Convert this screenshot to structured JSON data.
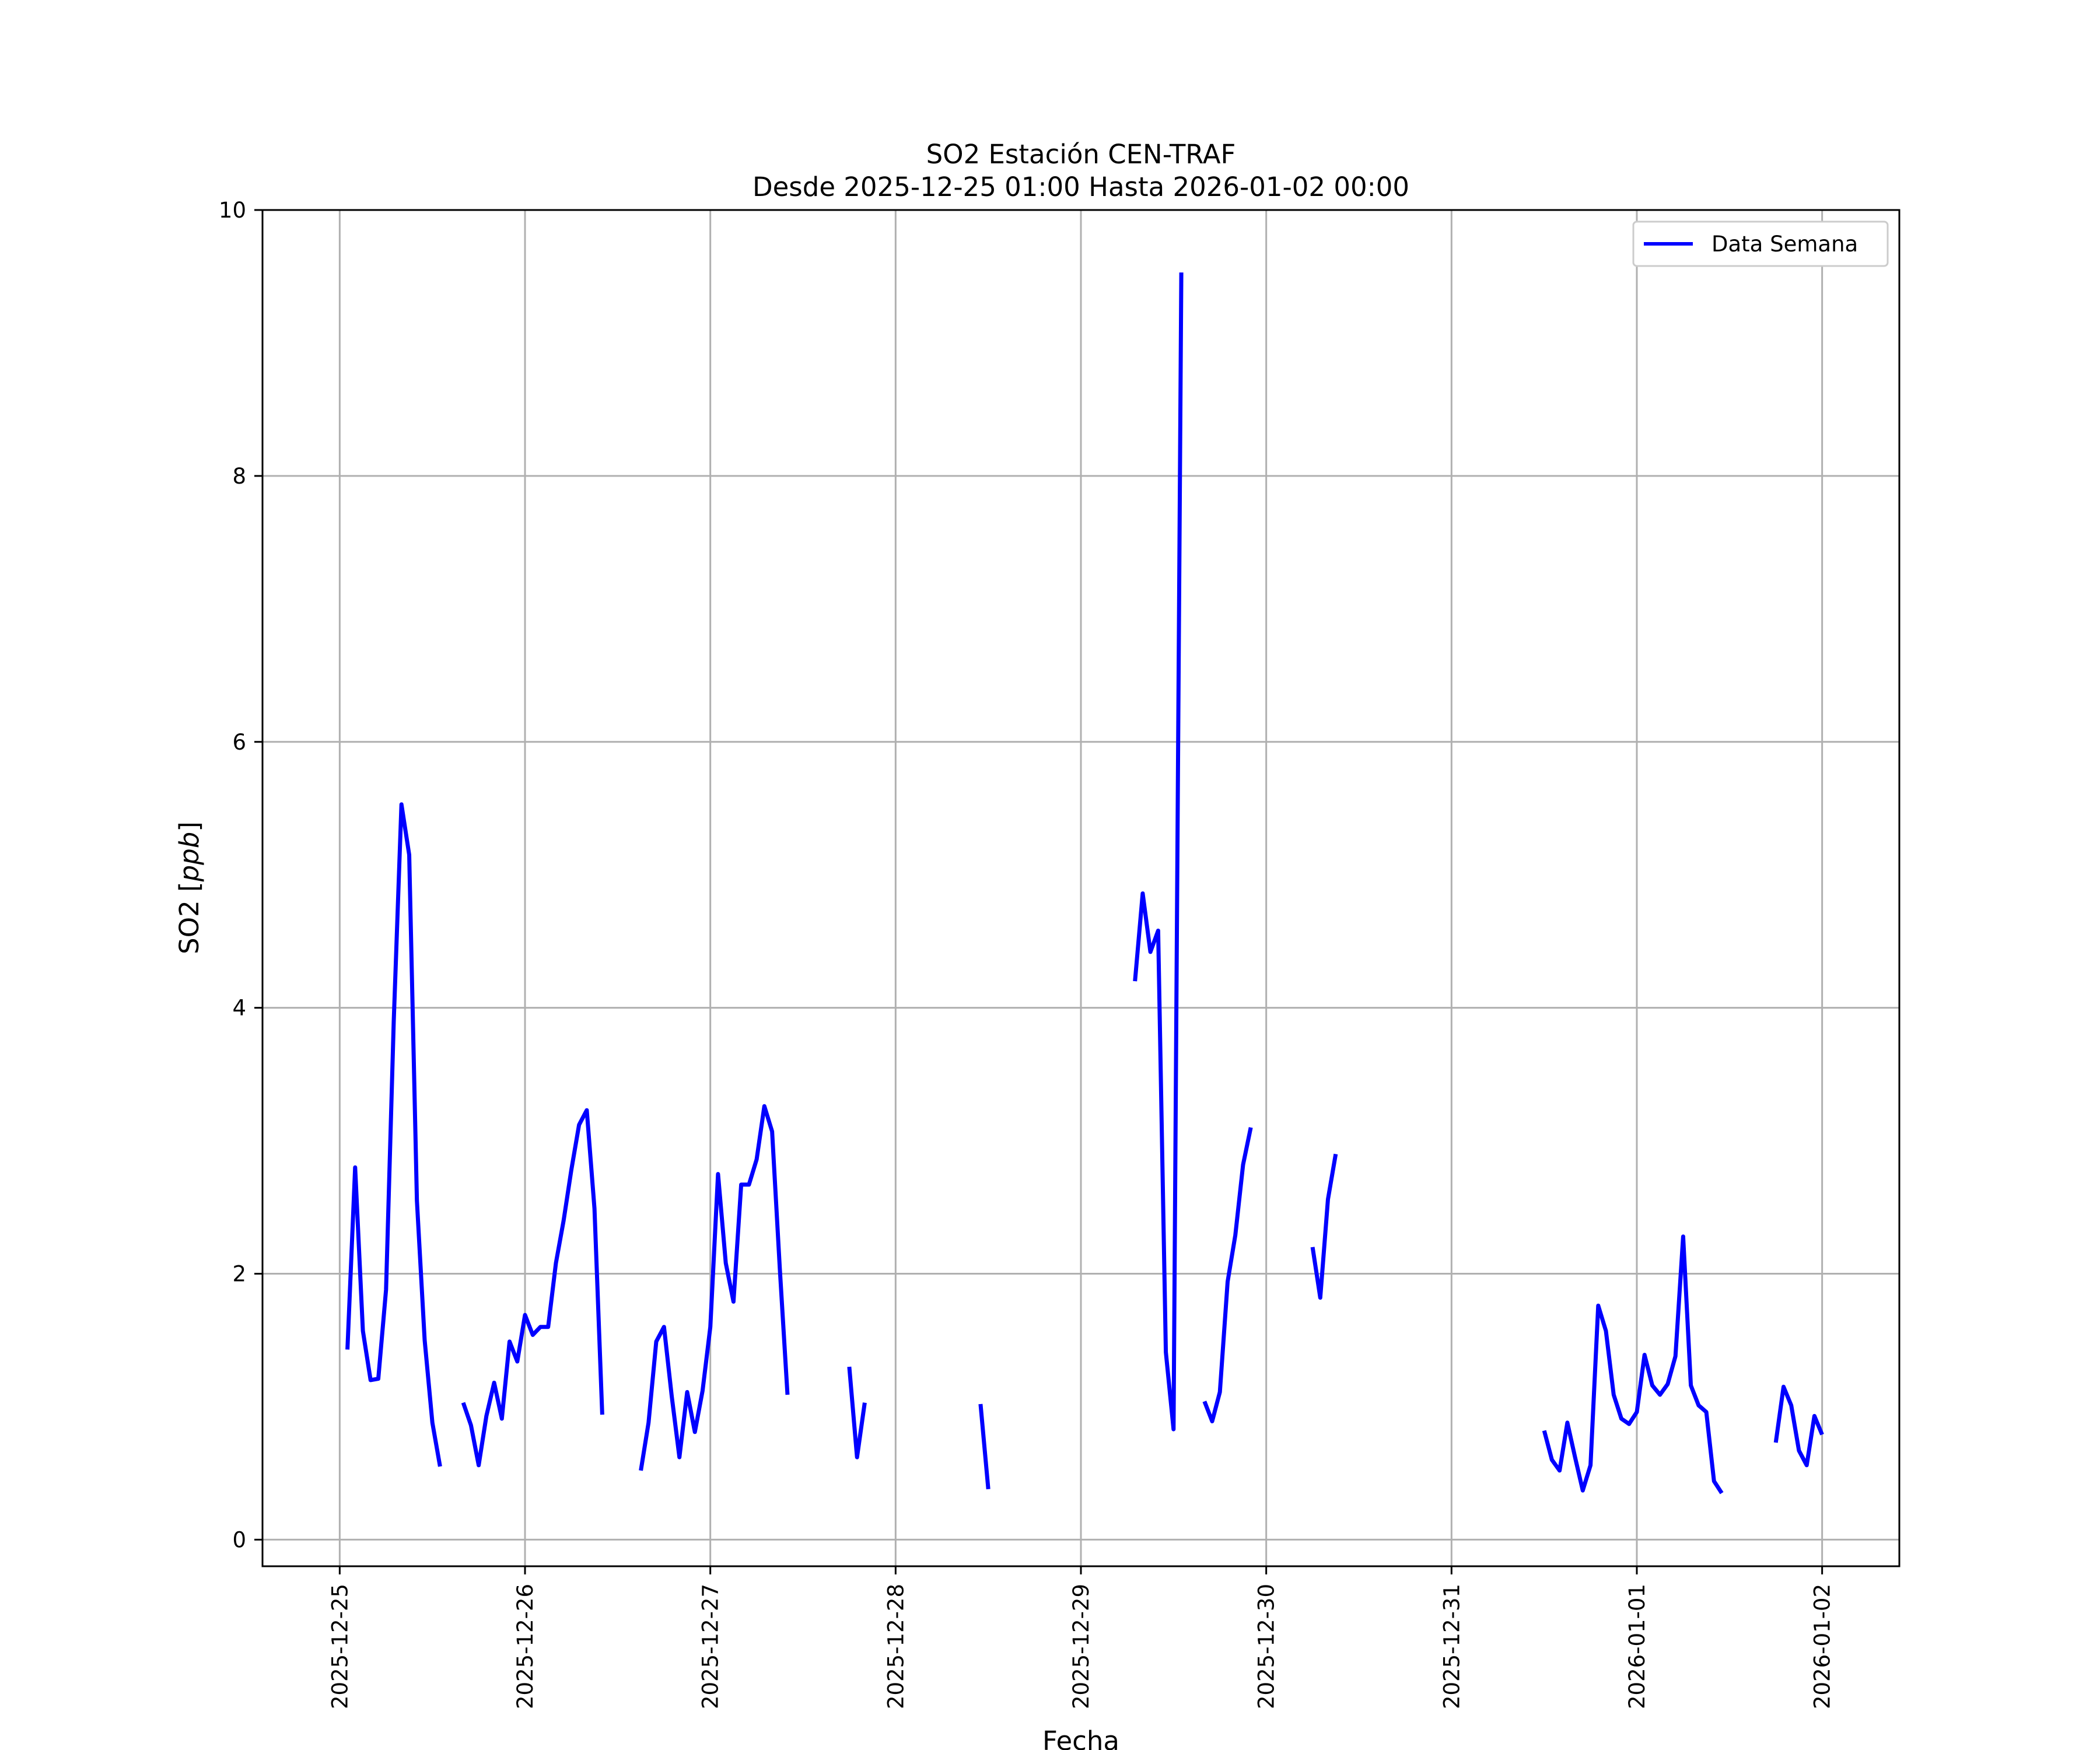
{
  "chart_data": {
    "type": "line",
    "title": "SO2 Estación CEN-TRAF",
    "subtitle": "Desde 2025-12-25 01:00 Hasta 2026-01-02 00:00",
    "xlabel": "Fecha",
    "ylabel": "SO2 [ppb]",
    "ylabel_main": "SO2 [",
    "ylabel_unit": "ppb",
    "ylabel_close": "]",
    "xlim": [
      "2025-12-24 14:00",
      "2026-01-02 10:00"
    ],
    "ylim": [
      -0.2,
      10
    ],
    "x_ticks": [
      "2025-12-25",
      "2025-12-26",
      "2025-12-27",
      "2025-12-28",
      "2025-12-29",
      "2025-12-30",
      "2025-12-31",
      "2026-01-01",
      "2026-01-02"
    ],
    "y_ticks": [
      0,
      2,
      4,
      6,
      8,
      10
    ],
    "grid": true,
    "legend_position": "top-right",
    "series": [
      {
        "name": "Data Semana",
        "color": "#0000ff",
        "segments": [
          [
            [
              "2025-12-25 01:00",
              1.43
            ],
            [
              "2025-12-25 02:00",
              2.8
            ],
            [
              "2025-12-25 03:00",
              1.57
            ],
            [
              "2025-12-25 04:00",
              1.2
            ],
            [
              "2025-12-25 05:00",
              1.21
            ],
            [
              "2025-12-25 06:00",
              1.88
            ],
            [
              "2025-12-25 07:00",
              3.9
            ],
            [
              "2025-12-25 08:00",
              5.53
            ],
            [
              "2025-12-25 09:00",
              5.15
            ],
            [
              "2025-12-25 10:00",
              2.55
            ],
            [
              "2025-12-25 11:00",
              1.5
            ],
            [
              "2025-12-25 12:00",
              0.88
            ],
            [
              "2025-12-25 13:00",
              0.55
            ]
          ],
          [
            [
              "2025-12-25 16:00",
              1.03
            ],
            [
              "2025-12-25 17:00",
              0.86
            ],
            [
              "2025-12-25 18:00",
              0.56
            ],
            [
              "2025-12-25 19:00",
              0.93
            ],
            [
              "2025-12-25 20:00",
              1.18
            ],
            [
              "2025-12-25 21:00",
              0.91
            ],
            [
              "2025-12-25 22:00",
              1.49
            ],
            [
              "2025-12-25 23:00",
              1.34
            ],
            [
              "2025-12-26 00:00",
              1.69
            ],
            [
              "2025-12-26 01:00",
              1.54
            ],
            [
              "2025-12-26 02:00",
              1.6
            ],
            [
              "2025-12-26 03:00",
              1.6
            ],
            [
              "2025-12-26 04:00",
              2.08
            ],
            [
              "2025-12-26 05:00",
              2.4
            ],
            [
              "2025-12-26 06:00",
              2.78
            ],
            [
              "2025-12-26 07:00",
              3.12
            ],
            [
              "2025-12-26 08:00",
              3.23
            ],
            [
              "2025-12-26 09:00",
              2.49
            ],
            [
              "2025-12-26 10:00",
              0.94
            ]
          ],
          [
            [
              "2025-12-26 15:00",
              0.52
            ],
            [
              "2025-12-26 16:00",
              0.88
            ],
            [
              "2025-12-26 17:00",
              1.49
            ],
            [
              "2025-12-26 18:00",
              1.6
            ],
            [
              "2025-12-26 19:00",
              1.08
            ],
            [
              "2025-12-26 20:00",
              0.62
            ],
            [
              "2025-12-26 21:00",
              1.11
            ],
            [
              "2025-12-26 22:00",
              0.81
            ],
            [
              "2025-12-26 23:00",
              1.12
            ],
            [
              "2025-12-27 00:00",
              1.6
            ],
            [
              "2025-12-27 01:00",
              2.75
            ],
            [
              "2025-12-27 02:00",
              2.08
            ],
            [
              "2025-12-27 03:00",
              1.79
            ],
            [
              "2025-12-27 04:00",
              2.67
            ],
            [
              "2025-12-27 05:00",
              2.67
            ],
            [
              "2025-12-27 06:00",
              2.86
            ],
            [
              "2025-12-27 07:00",
              3.26
            ],
            [
              "2025-12-27 08:00",
              3.07
            ],
            [
              "2025-12-27 09:00",
              2.04
            ],
            [
              "2025-12-27 10:00",
              1.09
            ]
          ],
          [
            [
              "2025-12-27 18:00",
              1.3
            ],
            [
              "2025-12-27 19:00",
              0.62
            ],
            [
              "2025-12-27 20:00",
              1.03
            ]
          ],
          [
            [
              "2025-12-28 11:00",
              1.02
            ],
            [
              "2025-12-28 12:00",
              0.38
            ]
          ],
          [
            [
              "2025-12-29 07:00",
              4.2
            ],
            [
              "2025-12-29 08:00",
              4.86
            ],
            [
              "2025-12-29 09:00",
              4.42
            ],
            [
              "2025-12-29 10:00",
              4.58
            ],
            [
              "2025-12-29 11:00",
              1.41
            ],
            [
              "2025-12-29 12:00",
              0.83
            ],
            [
              "2025-12-29 13:00",
              9.53
            ]
          ],
          [
            [
              "2025-12-29 16:00",
              1.04
            ],
            [
              "2025-12-29 17:00",
              0.89
            ],
            [
              "2025-12-29 18:00",
              1.11
            ],
            [
              "2025-12-29 19:00",
              1.94
            ],
            [
              "2025-12-29 20:00",
              2.29
            ],
            [
              "2025-12-29 21:00",
              2.82
            ],
            [
              "2025-12-29 22:00",
              3.1
            ]
          ],
          [
            [
              "2025-12-30 06:00",
              2.2
            ],
            [
              "2025-12-30 07:00",
              1.82
            ],
            [
              "2025-12-30 08:00",
              2.56
            ],
            [
              "2025-12-30 09:00",
              2.9
            ]
          ],
          [
            [
              "2025-12-31 12:00",
              0.82
            ],
            [
              "2025-12-31 13:00",
              0.6
            ],
            [
              "2025-12-31 14:00",
              0.52
            ],
            [
              "2025-12-31 15:00",
              0.88
            ],
            [
              "2025-12-31 16:00",
              0.62
            ],
            [
              "2025-12-31 17:00",
              0.37
            ],
            [
              "2025-12-31 18:00",
              0.56
            ],
            [
              "2025-12-31 19:00",
              1.76
            ],
            [
              "2025-12-31 20:00",
              1.57
            ],
            [
              "2025-12-31 21:00",
              1.09
            ],
            [
              "2025-12-31 22:00",
              0.91
            ],
            [
              "2025-12-31 23:00",
              0.87
            ],
            [
              "2026-01-01 00:00",
              0.96
            ],
            [
              "2026-01-01 01:00",
              1.39
            ],
            [
              "2026-01-01 02:00",
              1.16
            ],
            [
              "2026-01-01 03:00",
              1.09
            ],
            [
              "2026-01-01 04:00",
              1.17
            ],
            [
              "2026-01-01 05:00",
              1.38
            ],
            [
              "2026-01-01 06:00",
              2.28
            ],
            [
              "2026-01-01 07:00",
              1.16
            ],
            [
              "2026-01-01 08:00",
              1.01
            ],
            [
              "2026-01-01 09:00",
              0.96
            ],
            [
              "2026-01-01 10:00",
              0.44
            ],
            [
              "2026-01-01 11:00",
              0.35
            ]
          ],
          [
            [
              "2026-01-01 18:00",
              0.73
            ],
            [
              "2026-01-01 19:00",
              1.15
            ],
            [
              "2026-01-01 20:00",
              1.01
            ],
            [
              "2026-01-01 21:00",
              0.67
            ],
            [
              "2026-01-01 22:00",
              0.56
            ],
            [
              "2026-01-01 23:00",
              0.93
            ],
            [
              "2026-01-02 00:00",
              0.79
            ]
          ]
        ]
      }
    ]
  }
}
